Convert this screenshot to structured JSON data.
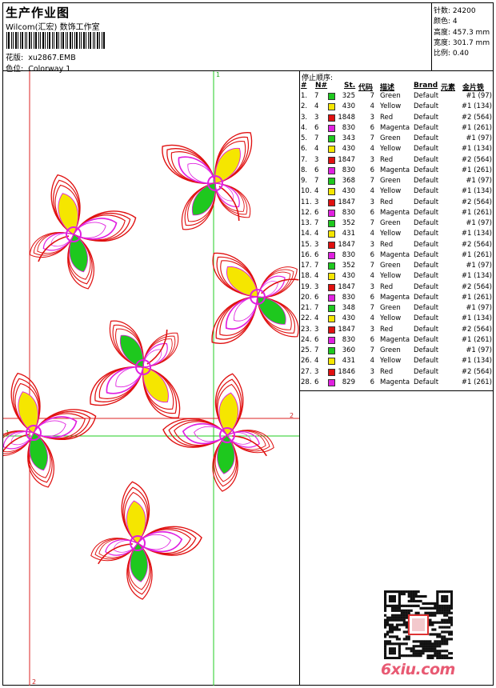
{
  "header": {
    "title": "生产作业图",
    "company": "Wilcom(汇宏) 数饰工作室",
    "design_label": "花版:",
    "design_value": "xu2867.EMB",
    "colorway_label": "色位:",
    "colorway_value": "Colorway 1"
  },
  "info": {
    "stitches_label": "针数:",
    "stitches": "24200",
    "colors_label": "颜色:",
    "colors": "4",
    "height_label": "高度:",
    "height": "457.3 mm",
    "width_label": "宽度:",
    "width": "301.7 mm",
    "scale_label": "比例:",
    "scale": "0.40"
  },
  "guides": {
    "v1": "1",
    "v2": "2",
    "h1": "1",
    "h2": "2"
  },
  "colors": {
    "Green": "#1ec81e",
    "Yellow": "#f5e600",
    "Red": "#e01010",
    "Magenta": "#e020e0"
  },
  "stop_sequence": {
    "title": "停止顺序:",
    "headers": {
      "idx": "#",
      "needle": "N#",
      "st": "St.",
      "code": "代码",
      "desc": "描述",
      "brand": "Brand",
      "element": "元素",
      "sequin": "金片铁"
    },
    "rows": [
      {
        "idx": "1.",
        "needle": "7",
        "st": "325",
        "code": "7",
        "desc": "Green",
        "brand": "Default",
        "sequin": "#1 (97)"
      },
      {
        "idx": "2.",
        "needle": "4",
        "st": "430",
        "code": "4",
        "desc": "Yellow",
        "brand": "Default",
        "sequin": "#1 (134)"
      },
      {
        "idx": "3.",
        "needle": "3",
        "st": "1848",
        "code": "3",
        "desc": "Red",
        "brand": "Default",
        "sequin": "#2 (564)"
      },
      {
        "idx": "4.",
        "needle": "6",
        "st": "830",
        "code": "6",
        "desc": "Magenta",
        "brand": "Default",
        "sequin": "#1 (261)"
      },
      {
        "idx": "5.",
        "needle": "7",
        "st": "343",
        "code": "7",
        "desc": "Green",
        "brand": "Default",
        "sequin": "#1 (97)"
      },
      {
        "idx": "6.",
        "needle": "4",
        "st": "430",
        "code": "4",
        "desc": "Yellow",
        "brand": "Default",
        "sequin": "#1 (134)"
      },
      {
        "idx": "7.",
        "needle": "3",
        "st": "1847",
        "code": "3",
        "desc": "Red",
        "brand": "Default",
        "sequin": "#2 (564)"
      },
      {
        "idx": "8.",
        "needle": "6",
        "st": "830",
        "code": "6",
        "desc": "Magenta",
        "brand": "Default",
        "sequin": "#1 (261)"
      },
      {
        "idx": "9.",
        "needle": "7",
        "st": "368",
        "code": "7",
        "desc": "Green",
        "brand": "Default",
        "sequin": "#1 (97)"
      },
      {
        "idx": "10.",
        "needle": "4",
        "st": "430",
        "code": "4",
        "desc": "Yellow",
        "brand": "Default",
        "sequin": "#1 (134)"
      },
      {
        "idx": "11.",
        "needle": "3",
        "st": "1847",
        "code": "3",
        "desc": "Red",
        "brand": "Default",
        "sequin": "#2 (564)"
      },
      {
        "idx": "12.",
        "needle": "6",
        "st": "830",
        "code": "6",
        "desc": "Magenta",
        "brand": "Default",
        "sequin": "#1 (261)"
      },
      {
        "idx": "13.",
        "needle": "7",
        "st": "352",
        "code": "7",
        "desc": "Green",
        "brand": "Default",
        "sequin": "#1 (97)"
      },
      {
        "idx": "14.",
        "needle": "4",
        "st": "431",
        "code": "4",
        "desc": "Yellow",
        "brand": "Default",
        "sequin": "#1 (134)"
      },
      {
        "idx": "15.",
        "needle": "3",
        "st": "1847",
        "code": "3",
        "desc": "Red",
        "brand": "Default",
        "sequin": "#2 (564)"
      },
      {
        "idx": "16.",
        "needle": "6",
        "st": "830",
        "code": "6",
        "desc": "Magenta",
        "brand": "Default",
        "sequin": "#1 (261)"
      },
      {
        "idx": "17.",
        "needle": "7",
        "st": "352",
        "code": "7",
        "desc": "Green",
        "brand": "Default",
        "sequin": "#1 (97)"
      },
      {
        "idx": "18.",
        "needle": "4",
        "st": "430",
        "code": "4",
        "desc": "Yellow",
        "brand": "Default",
        "sequin": "#1 (134)"
      },
      {
        "idx": "19.",
        "needle": "3",
        "st": "1847",
        "code": "3",
        "desc": "Red",
        "brand": "Default",
        "sequin": "#2 (564)"
      },
      {
        "idx": "20.",
        "needle": "6",
        "st": "830",
        "code": "6",
        "desc": "Magenta",
        "brand": "Default",
        "sequin": "#1 (261)"
      },
      {
        "idx": "21.",
        "needle": "7",
        "st": "348",
        "code": "7",
        "desc": "Green",
        "brand": "Default",
        "sequin": "#1 (97)"
      },
      {
        "idx": "22.",
        "needle": "4",
        "st": "430",
        "code": "4",
        "desc": "Yellow",
        "brand": "Default",
        "sequin": "#1 (134)"
      },
      {
        "idx": "23.",
        "needle": "3",
        "st": "1847",
        "code": "3",
        "desc": "Red",
        "brand": "Default",
        "sequin": "#2 (564)"
      },
      {
        "idx": "24.",
        "needle": "6",
        "st": "830",
        "code": "6",
        "desc": "Magenta",
        "brand": "Default",
        "sequin": "#1 (261)"
      },
      {
        "idx": "25.",
        "needle": "7",
        "st": "360",
        "code": "7",
        "desc": "Green",
        "brand": "Default",
        "sequin": "#1 (97)"
      },
      {
        "idx": "26.",
        "needle": "4",
        "st": "431",
        "code": "4",
        "desc": "Yellow",
        "brand": "Default",
        "sequin": "#1 (134)"
      },
      {
        "idx": "27.",
        "needle": "3",
        "st": "1846",
        "code": "3",
        "desc": "Red",
        "brand": "Default",
        "sequin": "#2 (564)"
      },
      {
        "idx": "28.",
        "needle": "6",
        "st": "829",
        "code": "6",
        "desc": "Magenta",
        "brand": "Default",
        "sequin": "#1 (261)"
      }
    ]
  },
  "watermark": "6xiu.com"
}
